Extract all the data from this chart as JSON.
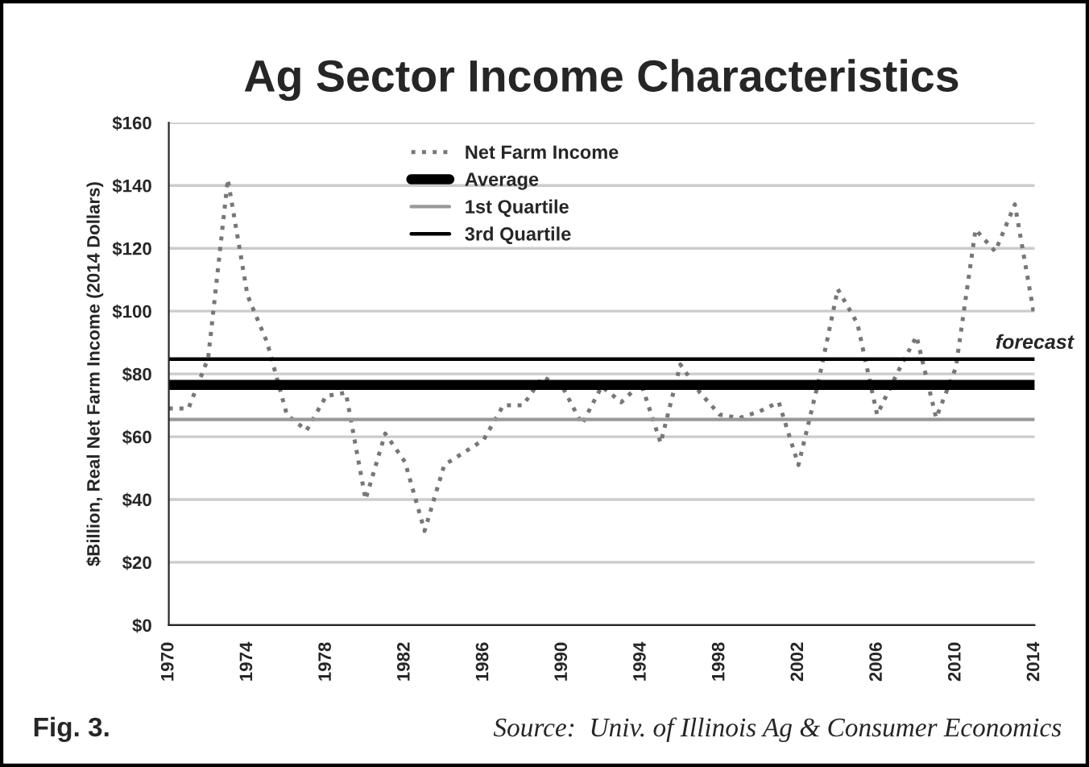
{
  "chart_data": {
    "type": "line",
    "title": "Ag Sector Income Characteristics",
    "ylabel": "$Billion, Real Net Farm Income (2014 Dollars)",
    "x": [
      1970,
      1971,
      1972,
      1973,
      1974,
      1975,
      1976,
      1977,
      1978,
      1979,
      1980,
      1981,
      1982,
      1983,
      1984,
      1985,
      1986,
      1987,
      1988,
      1989,
      1990,
      1991,
      1992,
      1993,
      1994,
      1995,
      1996,
      1997,
      1998,
      1999,
      2000,
      2001,
      2002,
      2003,
      2004,
      2005,
      2006,
      2007,
      2008,
      2009,
      2010,
      2011,
      2012,
      2013,
      2014
    ],
    "series": [
      {
        "name": "Net Farm Income",
        "color": "#777777",
        "line_style": "dotted",
        "values": [
          69,
          69,
          85,
          142,
          105,
          90,
          67,
          62,
          73,
          74,
          40,
          61,
          52,
          30,
          51,
          55,
          59,
          70,
          70,
          79,
          76,
          64,
          76,
          71,
          77,
          58,
          83,
          74,
          67,
          66,
          68,
          71,
          51,
          77,
          107,
          96,
          67,
          80,
          92,
          66,
          82,
          126,
          119,
          134,
          98
        ]
      }
    ],
    "ref_lines": [
      {
        "axis": "y",
        "value": 76.5,
        "label": "Average",
        "color": "#000000"
      },
      {
        "axis": "y",
        "value": 65.5,
        "label": "1st Quartile",
        "color": "#999999"
      },
      {
        "axis": "y",
        "value": 84.7,
        "label": "3rd Quartile",
        "color": "#000000"
      }
    ],
    "annotations": [
      {
        "text": "forecast",
        "x": 2014,
        "y": 98
      },
      "Fig. 3.",
      "Source:  Univ. of Illinois Ag & Consumer Economics"
    ],
    "xlim": [
      1970,
      2014
    ],
    "xticks": [
      1970,
      1974,
      1978,
      1982,
      1986,
      1990,
      1994,
      1998,
      2002,
      2006,
      2010,
      2014
    ],
    "ylim": [
      0,
      160
    ],
    "yticks": [
      {
        "value": 0,
        "label": "$0"
      },
      {
        "value": 20,
        "label": "$20"
      },
      {
        "value": 40,
        "label": "$40"
      },
      {
        "value": 60,
        "label": "$60"
      },
      {
        "value": 80,
        "label": "$80"
      },
      {
        "value": 100,
        "label": "$100"
      },
      {
        "value": 120,
        "label": "$120"
      },
      {
        "value": 140,
        "label": "$140"
      },
      {
        "value": 160,
        "label": "$160"
      }
    ],
    "grid": "y",
    "legend": "top"
  }
}
